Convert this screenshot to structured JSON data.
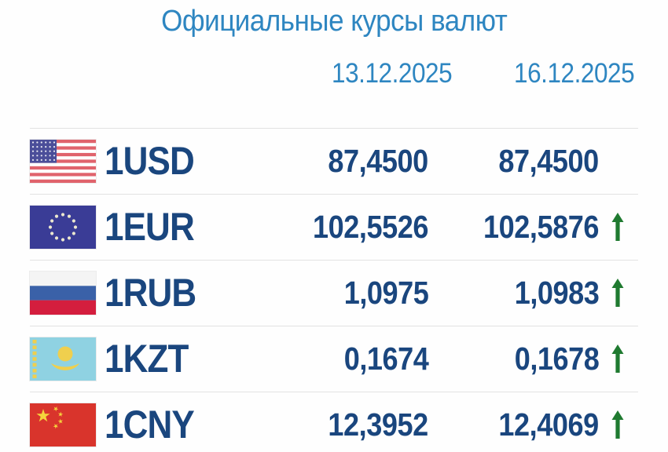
{
  "page": {
    "title": "Официальные курсы валют"
  },
  "dates": {
    "prev": "13.12.2025",
    "curr": "16.12.2025"
  },
  "colors": {
    "accent_blue": "#2e86c1",
    "navy_text": "#1a467e",
    "trend_green": "#1f7a30",
    "divider": "#e2e2e2"
  },
  "icons": {
    "trend_up": "up-arrow"
  },
  "table": {
    "rows": [
      {
        "id": "usd",
        "flag_icon": "us-flag-icon",
        "code": "1USD",
        "rate_prev": "87,4500",
        "rate_curr": "87,4500",
        "trend": "flat"
      },
      {
        "id": "eur",
        "flag_icon": "eu-flag-icon",
        "code": "1EUR",
        "rate_prev": "102,5526",
        "rate_curr": "102,5876",
        "trend": "up"
      },
      {
        "id": "rub",
        "flag_icon": "ru-flag-icon",
        "code": "1RUB",
        "rate_prev": "1,0975",
        "rate_curr": "1,0983",
        "trend": "up"
      },
      {
        "id": "kzt",
        "flag_icon": "kz-flag-icon",
        "code": "1KZT",
        "rate_prev": "0,1674",
        "rate_curr": "0,1678",
        "trend": "up"
      },
      {
        "id": "cny",
        "flag_icon": "cn-flag-icon",
        "code": "1CNY",
        "rate_prev": "12,3952",
        "rate_curr": "12,4069",
        "trend": "up"
      }
    ]
  }
}
